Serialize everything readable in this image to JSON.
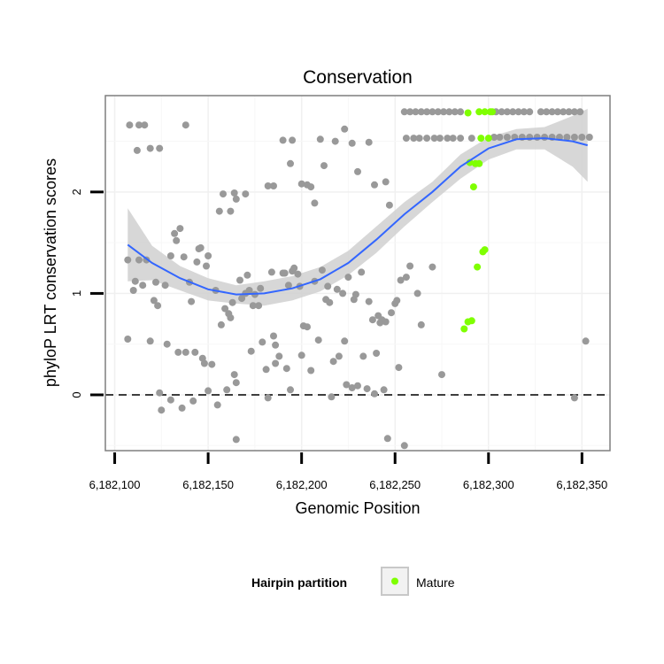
{
  "chart_data": {
    "type": "scatter",
    "title": "Conservation",
    "xlabel": "Genomic Position",
    "ylabel": "phyloP LRT conservation scores",
    "xlim": [
      6182095,
      6182365
    ],
    "ylim": [
      -0.55,
      2.95
    ],
    "x_ticks": [
      6182100,
      6182150,
      6182200,
      6182250,
      6182300,
      6182350
    ],
    "x_tick_labels": [
      "6,182,100",
      "6,182,150",
      "6,182,200",
      "6,182,250",
      "6,182,300",
      "6,182,350"
    ],
    "y_ticks": [
      0,
      1,
      2
    ],
    "y_tick_labels": [
      "0",
      "1",
      "2"
    ],
    "reference_line": {
      "y": 0,
      "style": "dashed"
    },
    "legend": {
      "title": "Hairpin partition",
      "position": "bottom",
      "entries": [
        {
          "label": "Mature",
          "color": "#7FFF00"
        }
      ]
    },
    "colors": {
      "other": "#999999",
      "mature": "#7FFF00",
      "smooth": "#3366FF",
      "band": "#D0D0D0"
    },
    "series": [
      {
        "name": "Other",
        "points": [
          [
            6182107,
            1.33
          ],
          [
            6182107,
            0.55
          ],
          [
            6182110,
            1.03
          ],
          [
            6182111,
            1.12
          ],
          [
            6182113,
            1.33
          ],
          [
            6182115,
            1.08
          ],
          [
            6182117,
            1.33
          ],
          [
            6182119,
            0.53
          ],
          [
            6182121,
            0.93
          ],
          [
            6182122,
            1.11
          ],
          [
            6182123,
            0.88
          ],
          [
            6182124,
            0.02
          ],
          [
            6182125,
            -0.15
          ],
          [
            6182127,
            1.08
          ],
          [
            6182128,
            0.5
          ],
          [
            6182130,
            1.37
          ],
          [
            6182130,
            -0.05
          ],
          [
            6182132,
            1.59
          ],
          [
            6182133,
            1.52
          ],
          [
            6182134,
            0.42
          ],
          [
            6182135,
            1.64
          ],
          [
            6182136,
            -0.13
          ],
          [
            6182137,
            1.36
          ],
          [
            6182138,
            0.42
          ],
          [
            6182140,
            1.11
          ],
          [
            6182141,
            0.92
          ],
          [
            6182142,
            -0.06
          ],
          [
            6182143,
            0.42
          ],
          [
            6182144,
            1.31
          ],
          [
            6182145,
            1.44
          ],
          [
            6182146,
            1.45
          ],
          [
            6182147,
            0.36
          ],
          [
            6182148,
            0.31
          ],
          [
            6182149,
            1.27
          ],
          [
            6182150,
            1.37
          ],
          [
            6182150,
            0.04
          ],
          [
            6182152,
            0.3
          ],
          [
            6182154,
            1.03
          ],
          [
            6182155,
            -0.1
          ],
          [
            6182157,
            0.69
          ],
          [
            6182159,
            0.85
          ],
          [
            6182160,
            0.05
          ],
          [
            6182161,
            0.8
          ],
          [
            6182162,
            0.76
          ],
          [
            6182163,
            0.91
          ],
          [
            6182164,
            0.2
          ],
          [
            6182165,
            0.12
          ],
          [
            6182165,
            -0.44
          ],
          [
            6182167,
            1.13
          ],
          [
            6182168,
            0.95
          ],
          [
            6182170,
            1.0
          ],
          [
            6182171,
            1.18
          ],
          [
            6182172,
            1.03
          ],
          [
            6182173,
            0.43
          ],
          [
            6182174,
            0.88
          ],
          [
            6182175,
            0.99
          ],
          [
            6182177,
            0.88
          ],
          [
            6182178,
            1.05
          ],
          [
            6182179,
            0.52
          ],
          [
            6182181,
            0.25
          ],
          [
            6182182,
            -0.03
          ],
          [
            6182184,
            1.21
          ],
          [
            6182185,
            0.58
          ],
          [
            6182186,
            0.49
          ],
          [
            6182186,
            0.31
          ],
          [
            6182188,
            0.38
          ],
          [
            6182190,
            1.2
          ],
          [
            6182191,
            1.2
          ],
          [
            6182192,
            0.26
          ],
          [
            6182193,
            1.08
          ],
          [
            6182194,
            0.05
          ],
          [
            6182195,
            1.22
          ],
          [
            6182196,
            1.25
          ],
          [
            6182198,
            1.19
          ],
          [
            6182199,
            1.07
          ],
          [
            6182200,
            0.39
          ],
          [
            6182201,
            0.68
          ],
          [
            6182203,
            0.67
          ],
          [
            6182205,
            0.24
          ],
          [
            6182207,
            1.12
          ],
          [
            6182209,
            0.54
          ],
          [
            6182211,
            1.23
          ],
          [
            6182213,
            0.94
          ],
          [
            6182214,
            1.07
          ],
          [
            6182215,
            0.91
          ],
          [
            6182216,
            -0.02
          ],
          [
            6182217,
            0.33
          ],
          [
            6182219,
            1.04
          ],
          [
            6182220,
            0.38
          ],
          [
            6182222,
            1.0
          ],
          [
            6182223,
            0.53
          ],
          [
            6182224,
            0.1
          ],
          [
            6182225,
            1.16
          ],
          [
            6182227,
            0.07
          ],
          [
            6182228,
            0.94
          ],
          [
            6182229,
            0.99
          ],
          [
            6182230,
            0.09
          ],
          [
            6182232,
            1.21
          ],
          [
            6182233,
            0.38
          ],
          [
            6182235,
            0.06
          ],
          [
            6182236,
            0.92
          ],
          [
            6182238,
            0.74
          ],
          [
            6182239,
            0.01
          ],
          [
            6182240,
            0.41
          ],
          [
            6182241,
            0.78
          ],
          [
            6182242,
            0.71
          ],
          [
            6182243,
            0.74
          ],
          [
            6182244,
            0.05
          ],
          [
            6182245,
            0.72
          ],
          [
            6182246,
            -0.43
          ],
          [
            6182248,
            0.81
          ],
          [
            6182250,
            0.9
          ],
          [
            6182251,
            0.93
          ],
          [
            6182252,
            0.27
          ],
          [
            6182253,
            1.13
          ],
          [
            6182255,
            -0.5
          ],
          [
            6182256,
            1.16
          ],
          [
            6182258,
            1.27
          ],
          [
            6182262,
            1.0
          ],
          [
            6182264,
            0.69
          ],
          [
            6182270,
            1.26
          ],
          [
            6182275,
            0.2
          ],
          [
            6182346,
            -0.03
          ],
          [
            6182352,
            0.53
          ],
          [
            6182108,
            2.66
          ],
          [
            6182113,
            2.66
          ],
          [
            6182116,
            2.66
          ],
          [
            6182112,
            2.41
          ],
          [
            6182119,
            2.43
          ],
          [
            6182124,
            2.43
          ],
          [
            6182138,
            2.66
          ],
          [
            6182156,
            1.81
          ],
          [
            6182162,
            1.81
          ],
          [
            6182158,
            1.98
          ],
          [
            6182164,
            1.99
          ],
          [
            6182170,
            1.98
          ],
          [
            6182165,
            1.93
          ],
          [
            6182182,
            2.06
          ],
          [
            6182185,
            2.06
          ],
          [
            6182190,
            2.51
          ],
          [
            6182195,
            2.51
          ],
          [
            6182194,
            2.28
          ],
          [
            6182200,
            2.08
          ],
          [
            6182203,
            2.07
          ],
          [
            6182205,
            2.05
          ],
          [
            6182207,
            1.89
          ],
          [
            6182210,
            2.52
          ],
          [
            6182212,
            2.26
          ],
          [
            6182218,
            2.5
          ],
          [
            6182223,
            2.62
          ],
          [
            6182227,
            2.48
          ],
          [
            6182230,
            2.2
          ],
          [
            6182236,
            2.49
          ],
          [
            6182239,
            2.07
          ],
          [
            6182245,
            2.1
          ],
          [
            6182247,
            1.87
          ],
          [
            6182255,
            2.79
          ],
          [
            6182258,
            2.79
          ],
          [
            6182261,
            2.79
          ],
          [
            6182264,
            2.79
          ],
          [
            6182267,
            2.79
          ],
          [
            6182270,
            2.79
          ],
          [
            6182273,
            2.79
          ],
          [
            6182276,
            2.79
          ],
          [
            6182279,
            2.79
          ],
          [
            6182282,
            2.79
          ],
          [
            6182285,
            2.79
          ],
          [
            6182304,
            2.79
          ],
          [
            6182307,
            2.79
          ],
          [
            6182310,
            2.79
          ],
          [
            6182313,
            2.79
          ],
          [
            6182316,
            2.79
          ],
          [
            6182319,
            2.79
          ],
          [
            6182322,
            2.79
          ],
          [
            6182328,
            2.79
          ],
          [
            6182331,
            2.79
          ],
          [
            6182334,
            2.79
          ],
          [
            6182337,
            2.79
          ],
          [
            6182340,
            2.79
          ],
          [
            6182343,
            2.79
          ],
          [
            6182346,
            2.79
          ],
          [
            6182349,
            2.79
          ],
          [
            6182256,
            2.53
          ],
          [
            6182260,
            2.53
          ],
          [
            6182263,
            2.53
          ],
          [
            6182267,
            2.53
          ],
          [
            6182271,
            2.53
          ],
          [
            6182274,
            2.53
          ],
          [
            6182278,
            2.53
          ],
          [
            6182281,
            2.53
          ],
          [
            6182285,
            2.53
          ],
          [
            6182291,
            2.53
          ],
          [
            6182303,
            2.54
          ],
          [
            6182306,
            2.54
          ],
          [
            6182310,
            2.54
          ],
          [
            6182314,
            2.54
          ],
          [
            6182318,
            2.54
          ],
          [
            6182322,
            2.54
          ],
          [
            6182326,
            2.54
          ],
          [
            6182330,
            2.54
          ],
          [
            6182334,
            2.54
          ],
          [
            6182338,
            2.54
          ],
          [
            6182342,
            2.54
          ],
          [
            6182346,
            2.54
          ],
          [
            6182350,
            2.54
          ],
          [
            6182354,
            2.54
          ]
        ]
      },
      {
        "name": "Mature",
        "points": [
          [
            6182287,
            0.65
          ],
          [
            6182289,
            0.72
          ],
          [
            6182291,
            0.73
          ],
          [
            6182292,
            2.05
          ],
          [
            6182293,
            2.28
          ],
          [
            6182294,
            1.26
          ],
          [
            6182295,
            2.28
          ],
          [
            6182296,
            2.53
          ],
          [
            6182297,
            1.41
          ],
          [
            6182298,
            1.43
          ],
          [
            6182300,
            2.53
          ],
          [
            6182289,
            2.78
          ],
          [
            6182295,
            2.79
          ],
          [
            6182298,
            2.79
          ],
          [
            6182301,
            2.79
          ],
          [
            6182302,
            2.79
          ],
          [
            6182290,
            2.29
          ]
        ]
      }
    ],
    "smooth": {
      "x": [
        6182107,
        6182120,
        6182135,
        6182150,
        6182165,
        6182180,
        6182195,
        6182210,
        6182225,
        6182240,
        6182255,
        6182270,
        6182285,
        6182300,
        6182315,
        6182330,
        6182345,
        6182353
      ],
      "y": [
        1.48,
        1.3,
        1.15,
        1.04,
        0.99,
        1.0,
        1.05,
        1.14,
        1.3,
        1.53,
        1.78,
        2.0,
        2.25,
        2.43,
        2.52,
        2.53,
        2.5,
        2.46
      ],
      "lower": [
        1.12,
        1.13,
        1.03,
        0.93,
        0.9,
        0.88,
        0.93,
        1.02,
        1.18,
        1.4,
        1.66,
        1.9,
        2.13,
        2.32,
        2.42,
        2.42,
        2.25,
        2.1
      ],
      "upper": [
        1.84,
        1.47,
        1.27,
        1.15,
        1.08,
        1.12,
        1.17,
        1.26,
        1.42,
        1.66,
        1.9,
        2.1,
        2.37,
        2.54,
        2.62,
        2.64,
        2.75,
        2.82
      ]
    }
  }
}
